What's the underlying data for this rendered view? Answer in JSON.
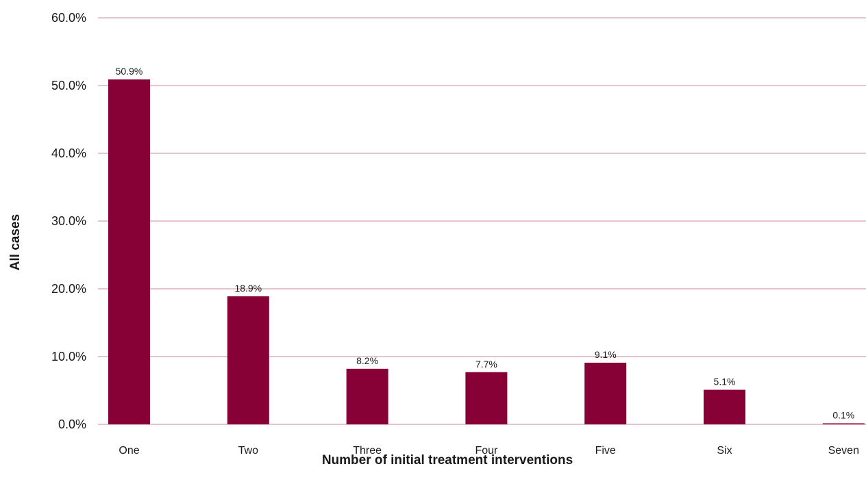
{
  "chart_data": {
    "type": "bar",
    "categories": [
      "One",
      "Two",
      "Three",
      "Four",
      "Five",
      "Six",
      "Seven"
    ],
    "values": [
      50.9,
      18.9,
      8.2,
      7.7,
      9.1,
      5.1,
      0.1
    ],
    "value_labels": [
      "50.9%",
      "18.9%",
      "8.2%",
      "7.7%",
      "9.1%",
      "5.1%",
      "0.1%"
    ],
    "title": "",
    "xlabel": "Number of initial treatment interventions",
    "ylabel": "All cases",
    "ylim": [
      0,
      60
    ],
    "yticks": [
      0,
      10,
      20,
      30,
      40,
      50,
      60
    ],
    "ytick_labels": [
      "0.0%",
      "10.0%",
      "20.0%",
      "30.0%",
      "40.0%",
      "50.0%",
      "60.0%"
    ],
    "grid": true,
    "legend": "none",
    "colors": {
      "bar": "#870036",
      "grid": "#c98aa3",
      "text": "#1a1a1a"
    }
  }
}
